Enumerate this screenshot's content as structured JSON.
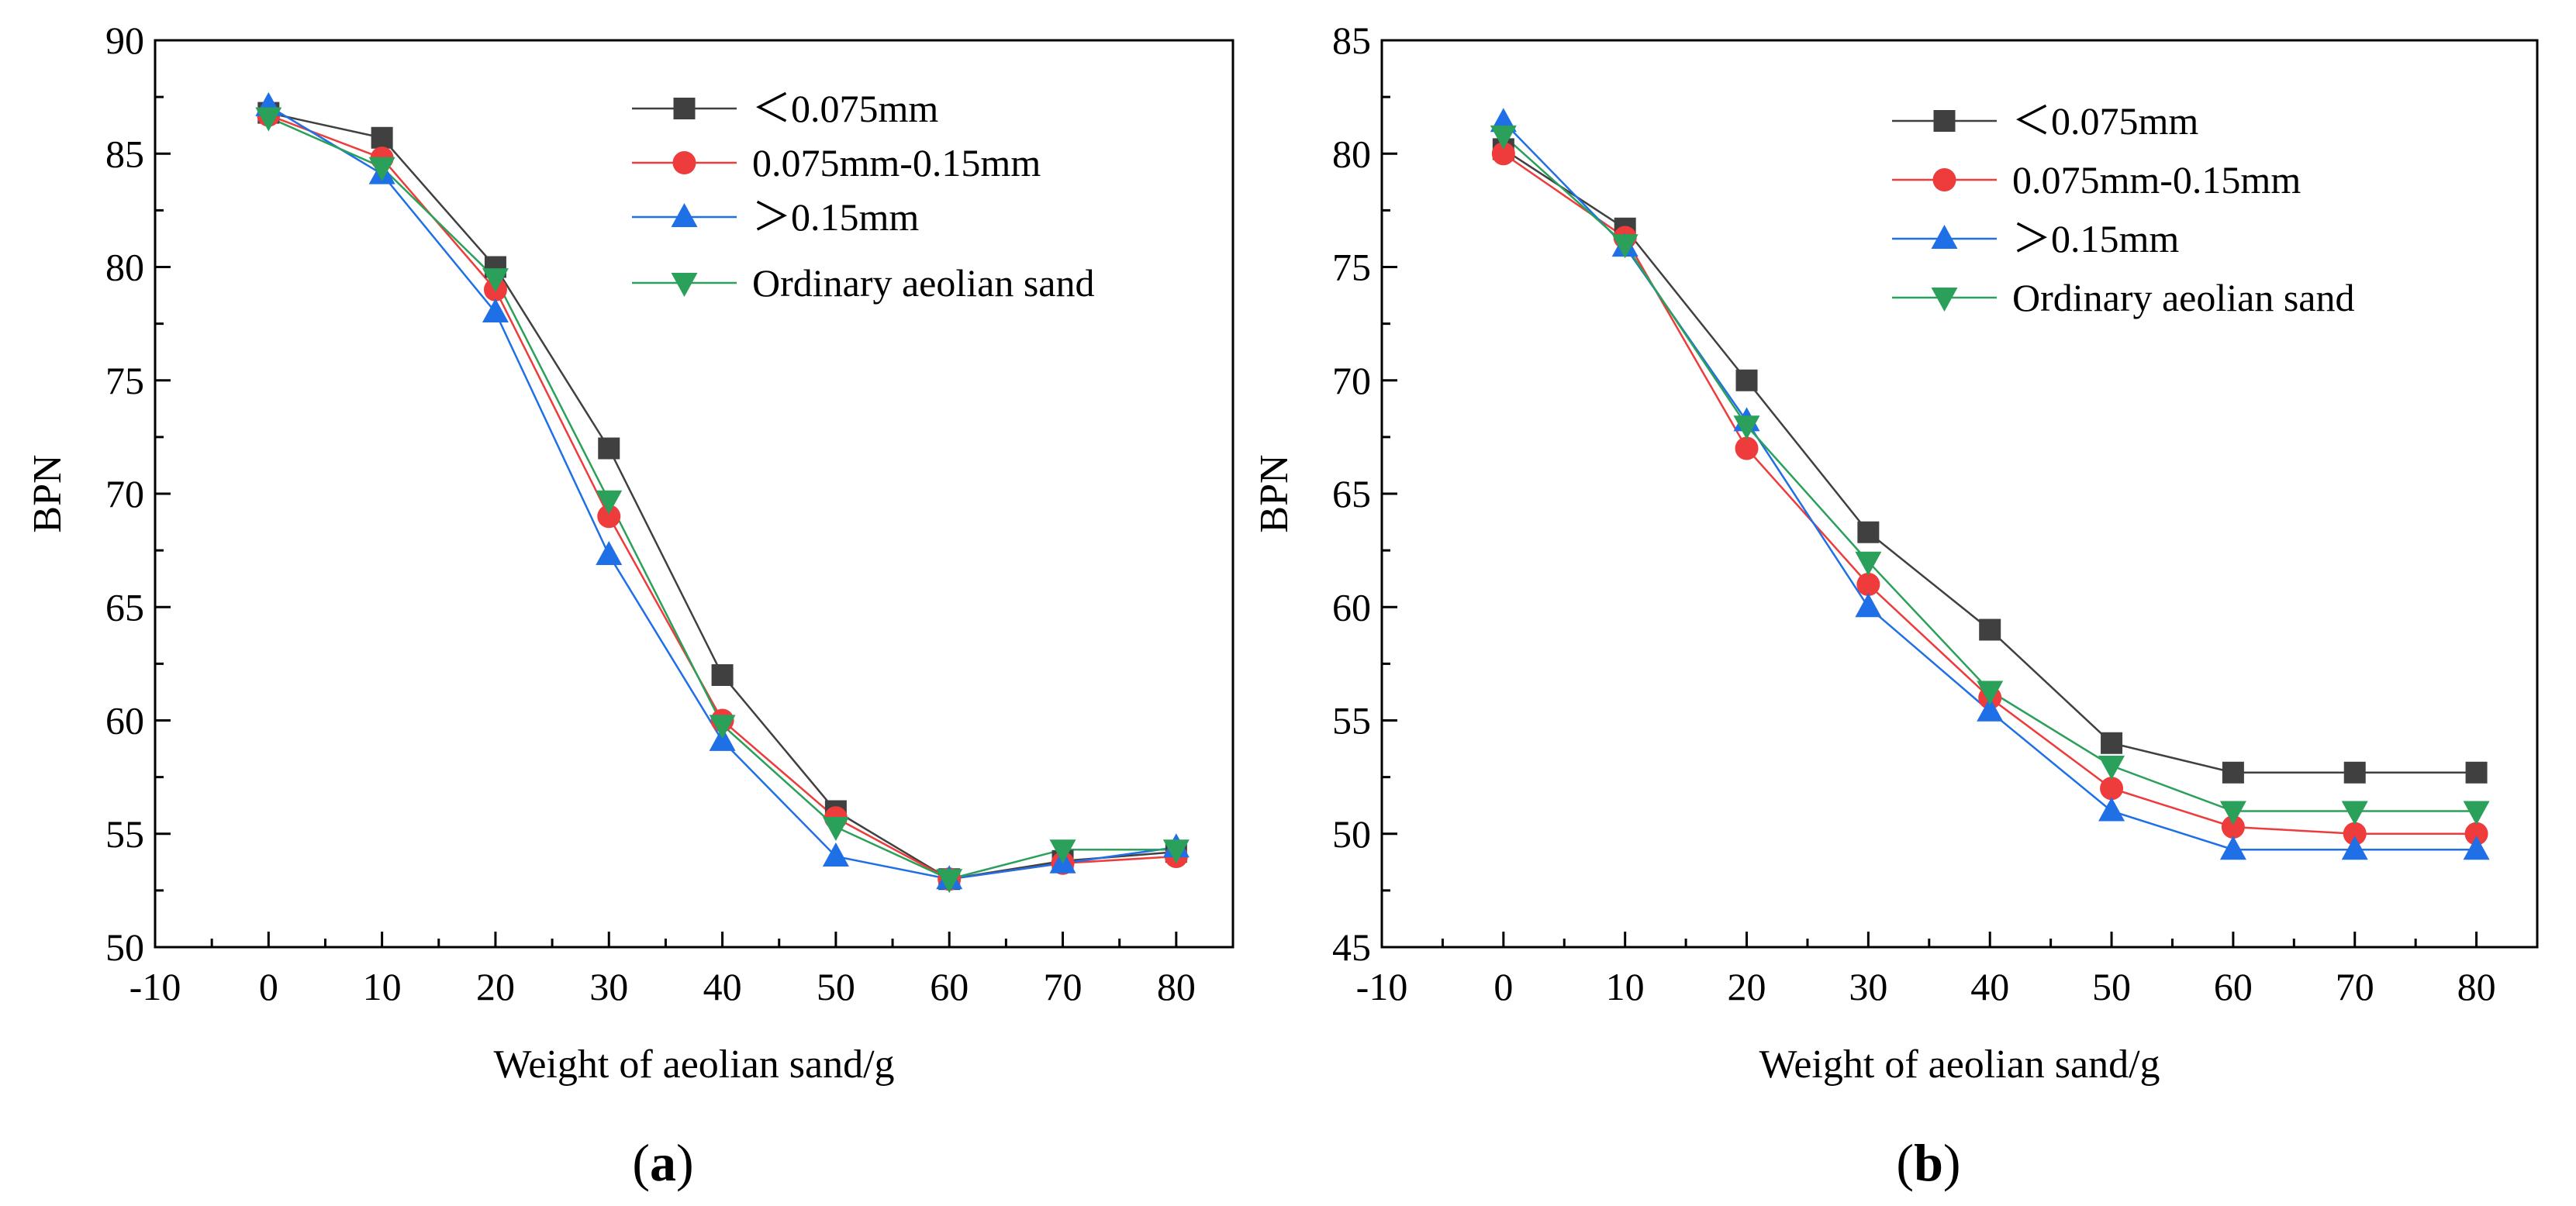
{
  "series_styles": [
    {
      "color": "#404040",
      "marker": "square"
    },
    {
      "color": "#ee3b3b",
      "marker": "circle"
    },
    {
      "color": "#1f6fe6",
      "marker": "triangle-up"
    },
    {
      "color": "#2aa05a",
      "marker": "triangle-down"
    }
  ],
  "chart_data": [
    {
      "type": "line",
      "panel_label": {
        "open": "(",
        "letter": "a",
        "close": ")"
      },
      "title": "",
      "xlabel": "Weight of aeolian sand/g",
      "ylabel": "BPN",
      "xlim": [
        -10,
        85
      ],
      "ylim": [
        50,
        90
      ],
      "xticks": [
        -10,
        0,
        10,
        20,
        30,
        40,
        50,
        60,
        70,
        80
      ],
      "yticks": [
        50,
        55,
        60,
        65,
        70,
        75,
        80,
        85,
        90
      ],
      "grid": false,
      "legend_position": "top-right",
      "x": [
        0,
        10,
        20,
        30,
        40,
        50,
        60,
        70,
        80
      ],
      "series": [
        {
          "name": "＜0.075mm",
          "values": [
            86.8,
            85.7,
            80.0,
            72.0,
            62.0,
            56.0,
            53.0,
            53.8,
            54.2
          ]
        },
        {
          "name": "0.075mm-0.15mm",
          "values": [
            86.7,
            84.8,
            79.0,
            69.0,
            60.0,
            55.7,
            53.0,
            53.7,
            54.0
          ]
        },
        {
          "name": "＞0.15mm",
          "values": [
            87.1,
            84.1,
            78.0,
            67.3,
            59.1,
            54.0,
            53.0,
            53.7,
            54.4
          ]
        },
        {
          "name": "Ordinary aeolian sand",
          "values": [
            86.6,
            84.4,
            79.5,
            69.7,
            59.8,
            55.3,
            53.0,
            54.3,
            54.3
          ]
        }
      ]
    },
    {
      "type": "line",
      "panel_label": {
        "open": "(",
        "letter": "b",
        "close": ")"
      },
      "title": "",
      "xlabel": "Weight of aeolian sand/g",
      "ylabel": "BPN",
      "xlim": [
        -10,
        85
      ],
      "ylim": [
        45,
        85
      ],
      "xticks": [
        -10,
        0,
        10,
        20,
        30,
        40,
        50,
        60,
        70,
        80
      ],
      "yticks": [
        45,
        50,
        55,
        60,
        65,
        70,
        75,
        80,
        85
      ],
      "grid": false,
      "legend_position": "top-right",
      "x": [
        0,
        10,
        20,
        30,
        40,
        50,
        60,
        70,
        80
      ],
      "series": [
        {
          "name": "＜0.075mm",
          "values": [
            80.2,
            76.7,
            70.0,
            63.3,
            59.0,
            54.0,
            52.7,
            52.7,
            52.7
          ]
        },
        {
          "name": "0.075mm-0.15mm",
          "values": [
            80.0,
            76.3,
            67.0,
            61.0,
            56.0,
            52.0,
            50.3,
            50.0,
            50.0
          ]
        },
        {
          "name": "＞0.15mm",
          "values": [
            81.4,
            75.9,
            68.2,
            60.0,
            55.4,
            51.0,
            49.3,
            49.3,
            49.3
          ]
        },
        {
          "name": "Ordinary aeolian sand",
          "values": [
            80.8,
            76.0,
            68.0,
            62.0,
            56.3,
            53.0,
            51.0,
            51.0,
            51.0
          ]
        }
      ]
    }
  ]
}
